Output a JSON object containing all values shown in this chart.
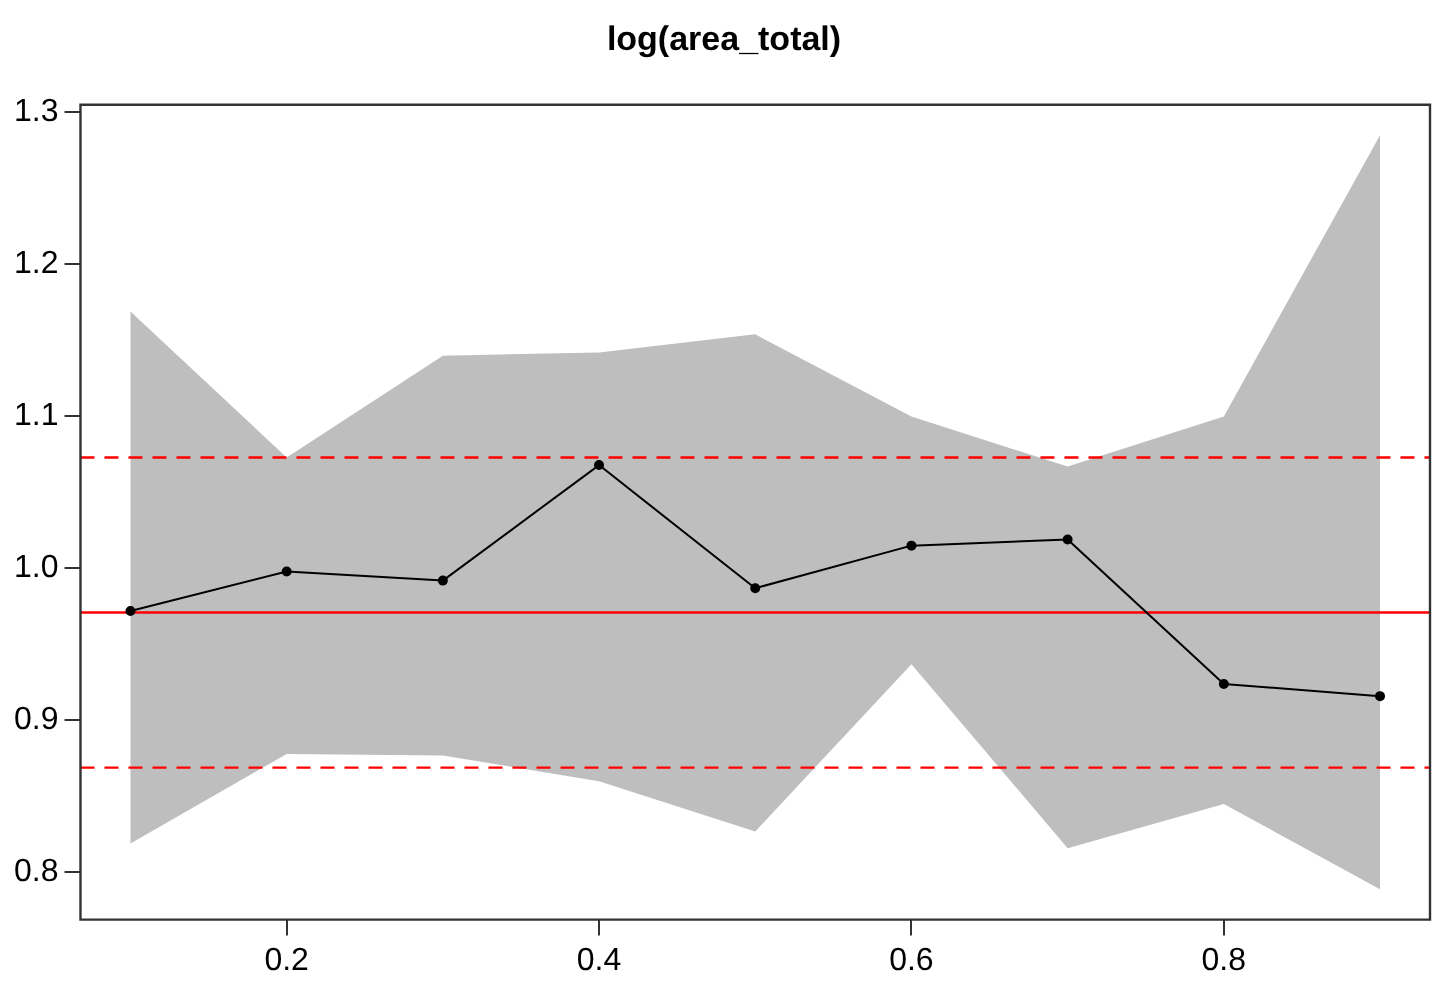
{
  "chart_data": {
    "type": "line",
    "title": "log(area_total)",
    "x": [
      0.1,
      0.2,
      0.3,
      0.4,
      0.5,
      0.6,
      0.7,
      0.8,
      0.9
    ],
    "series": [
      {
        "color": "#000000",
        "values": [
          0.972,
          0.998,
          0.992,
          1.068,
          0.987,
          1.015,
          1.019,
          0.924,
          0.916
        ],
        "lower": [
          0.819,
          0.878,
          0.877,
          0.86,
          0.827,
          0.937,
          0.816,
          0.845,
          0.789
        ],
        "upper": [
          1.169,
          1.073,
          1.14,
          1.142,
          1.154,
          1.1,
          1.067,
          1.1,
          1.285
        ]
      }
    ],
    "marker": "circle",
    "line_style": "solid",
    "xlim": [
      0.068,
      0.932
    ],
    "ylim": [
      0.769,
      1.305
    ],
    "xticks": [
      0.2,
      0.4,
      0.6,
      0.8
    ],
    "yticks": [
      0.8,
      0.9,
      {
        "value": 1,
        "label": "1.0"
      },
      1.1,
      1.2,
      1.3
    ],
    "ref_lines": [
      {
        "axis": "y",
        "value": 0.971,
        "color": "#ff0000",
        "line_style": "solid"
      },
      {
        "axis": "y",
        "value": 1.073,
        "color": "#ff0000",
        "line_style": "dashed"
      },
      {
        "axis": "y",
        "value": 0.869,
        "color": "#ff0000",
        "line_style": "dashed"
      }
    ]
  }
}
